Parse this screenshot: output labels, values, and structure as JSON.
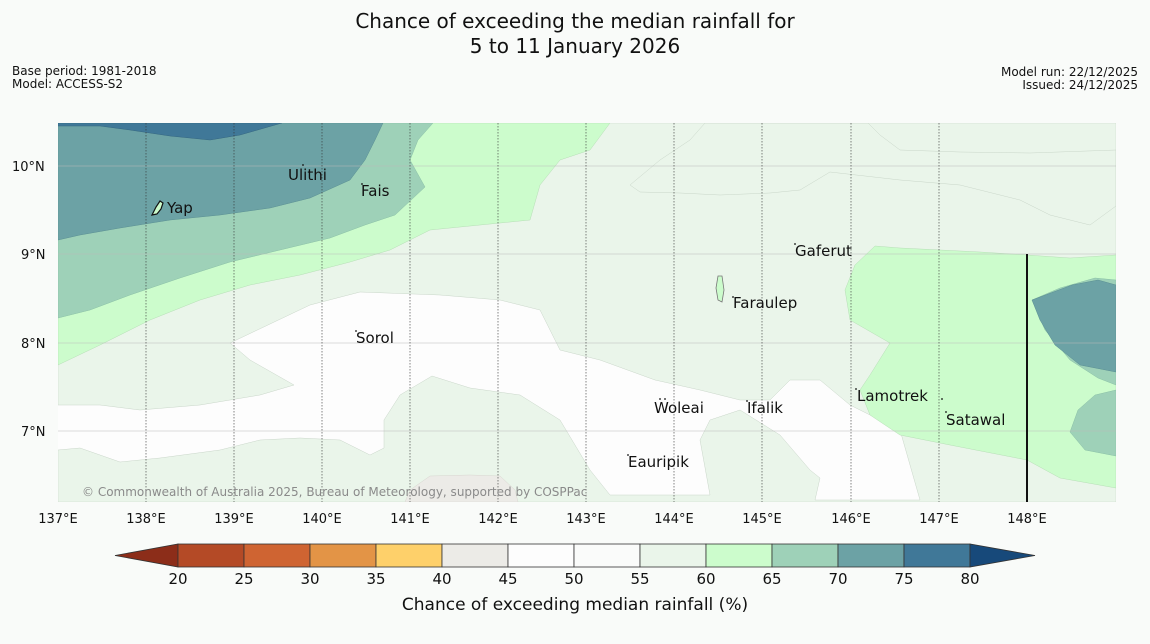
{
  "title": {
    "line1": "Chance of exceeding the median rainfall for",
    "line2": "5 to 11 January 2026"
  },
  "meta": {
    "base_period": "Base period: 1981-2018",
    "model": "Model: ACCESS-S2",
    "model_run": "Model run: 22/12/2025",
    "issued": "Issued: 24/12/2025"
  },
  "map": {
    "copyright": "© Commonwealth of Australia 2025, Bureau of Meteorology, supported by COSPPac",
    "lat_labels": [
      "10°N",
      "9°N",
      "8°N",
      "7°N"
    ],
    "lon_labels": [
      "137°E",
      "138°E",
      "139°E",
      "140°E",
      "141°E",
      "142°E",
      "143°E",
      "144°E",
      "145°E",
      "146°E",
      "147°E",
      "148°E"
    ],
    "places": [
      "Yap",
      "Ulithi",
      "Fais",
      "Gaferut",
      "Faraulep",
      "Sorol",
      "Lamotrek",
      "Woleai",
      "Ifalik",
      "Satawal",
      "Eauripik"
    ]
  },
  "colorbar": {
    "ticks": [
      "20",
      "25",
      "30",
      "35",
      "40",
      "45",
      "50",
      "55",
      "60",
      "65",
      "70",
      "75",
      "80"
    ],
    "colors": [
      "#8c2d19",
      "#b44a26",
      "#cf6432",
      "#e39446",
      "#fed06a",
      "#ecebe7",
      "#fdfdfd",
      "#fafbfa",
      "#eaf5ea",
      "#ccfccc",
      "#9ed1b8",
      "#6ca2a5",
      "#407898",
      "#17497a"
    ],
    "label": "Chance of exceeding median rainfall (%)"
  }
}
